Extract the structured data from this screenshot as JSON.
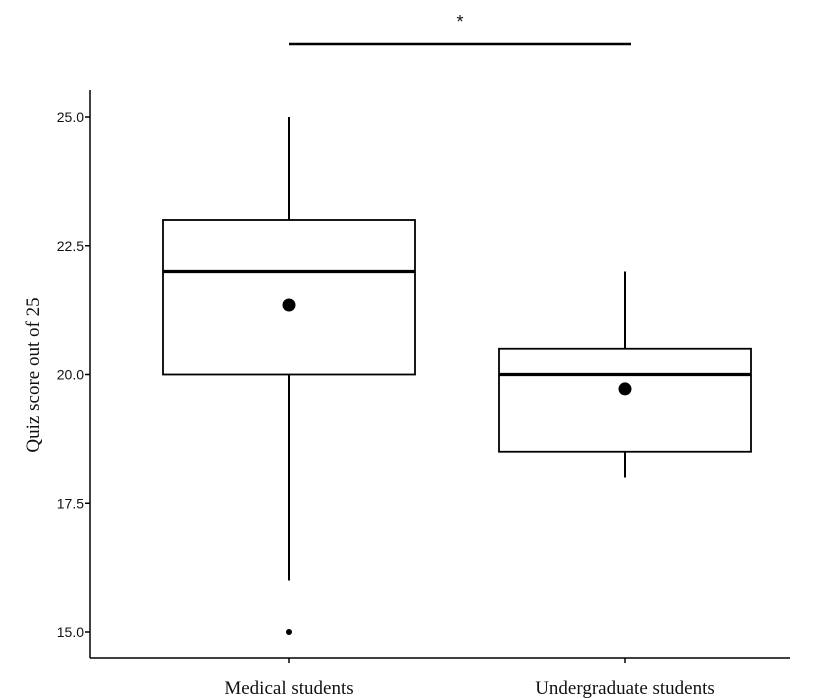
{
  "chart_data": {
    "type": "box",
    "title": "",
    "xlabel": "",
    "ylabel": "Quiz score out of 25",
    "ylim": [
      14.8,
      25.25
    ],
    "yticks": [
      15.0,
      17.5,
      20.0,
      22.5,
      25.0
    ],
    "ytick_labels": [
      "15.0",
      "17.5",
      "20.0",
      "22.5",
      "25.0"
    ],
    "categories": [
      "Medical students",
      "Undergraduate students"
    ],
    "boxes": [
      {
        "category": "Medical students",
        "whisker_low": 16.0,
        "q1": 20.0,
        "median": 22.0,
        "q3": 23.0,
        "whisker_high": 25.0,
        "mean": 21.35,
        "outliers": [
          15.0
        ]
      },
      {
        "category": "Undergraduate students",
        "whisker_low": 18.0,
        "q1": 18.5,
        "median": 20.0,
        "q3": 20.5,
        "whisker_high": 22.0,
        "mean": 19.72,
        "outliers": []
      }
    ],
    "significance": {
      "between": [
        "Medical students",
        "Undergraduate students"
      ],
      "label": "*"
    },
    "grid": false
  }
}
